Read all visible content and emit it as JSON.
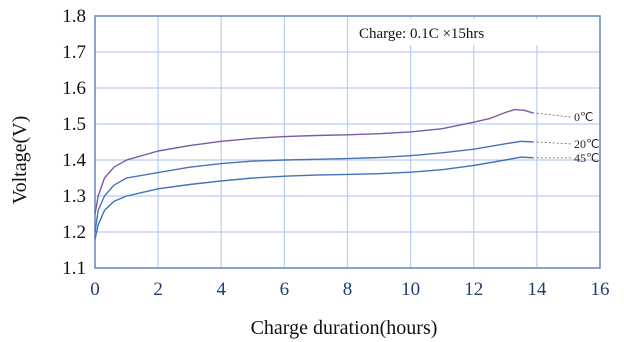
{
  "chart_data": {
    "type": "line",
    "xlabel": "Charge duration(hours)",
    "ylabel": "Voltage(V)",
    "xlim": [
      0,
      16
    ],
    "ylim": [
      1.1,
      1.8
    ],
    "xticks": [
      "0",
      "2",
      "4",
      "6",
      "8",
      "10",
      "12",
      "14",
      "16"
    ],
    "yticks": [
      "1.1",
      "1.2",
      "1.3",
      "1.4",
      "1.5",
      "1.6",
      "1.7",
      "1.8"
    ],
    "annotation": "Charge: 0.1C  ×15hrs",
    "grid": true,
    "series": [
      {
        "name": "0℃",
        "color": "#7a5aa8",
        "x": [
          0,
          0.1,
          0.3,
          0.6,
          1,
          2,
          3,
          4,
          5,
          6,
          7,
          8,
          9,
          10,
          11,
          12,
          12.5,
          13,
          13.3,
          13.6,
          13.9
        ],
        "y": [
          1.25,
          1.3,
          1.35,
          1.38,
          1.4,
          1.425,
          1.44,
          1.452,
          1.46,
          1.465,
          1.468,
          1.47,
          1.473,
          1.478,
          1.487,
          1.505,
          1.515,
          1.532,
          1.54,
          1.538,
          1.53
        ]
      },
      {
        "name": "20℃",
        "color": "#4a72b8",
        "x": [
          0,
          0.1,
          0.3,
          0.6,
          1,
          2,
          3,
          4,
          5,
          6,
          7,
          8,
          9,
          10,
          11,
          12,
          13,
          13.5,
          13.9
        ],
        "y": [
          1.2,
          1.26,
          1.3,
          1.33,
          1.35,
          1.365,
          1.38,
          1.39,
          1.397,
          1.4,
          1.402,
          1.404,
          1.407,
          1.412,
          1.42,
          1.43,
          1.445,
          1.452,
          1.45
        ]
      },
      {
        "name": "45℃",
        "color": "#3e73b8",
        "x": [
          0,
          0.1,
          0.3,
          0.6,
          1,
          2,
          3,
          4,
          5,
          6,
          7,
          8,
          9,
          10,
          11,
          12,
          13,
          13.5,
          13.9
        ],
        "y": [
          1.18,
          1.22,
          1.26,
          1.285,
          1.3,
          1.32,
          1.332,
          1.342,
          1.35,
          1.355,
          1.358,
          1.36,
          1.362,
          1.366,
          1.373,
          1.385,
          1.4,
          1.408,
          1.406
        ]
      }
    ]
  }
}
